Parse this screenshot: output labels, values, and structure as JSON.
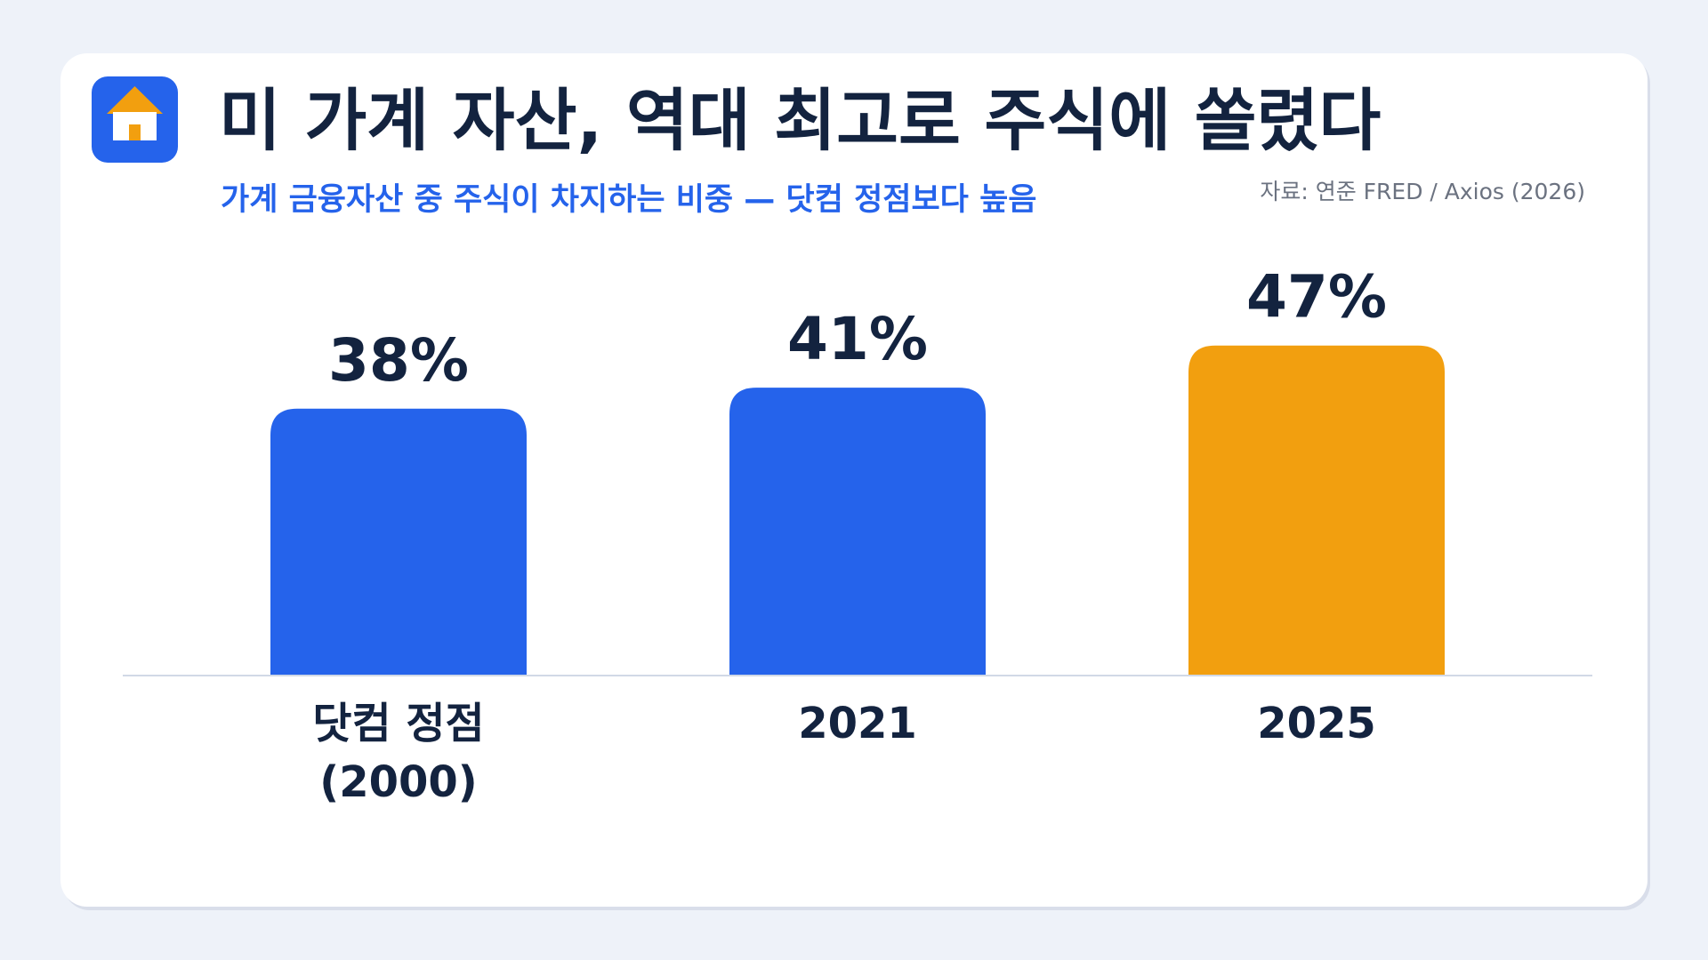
{
  "header": {
    "title": "미 가계 자산, 역대 최고로 주식에 쏠렸다",
    "subtitle": "가계 금융자산 중 주식이 차지하는 비중 — 닷컴 정점보다 높음",
    "source": "자료: 연준 FRED / Axios (2026)",
    "icon": "house-icon"
  },
  "colors": {
    "background": "#eef2f9",
    "title": "#13233f",
    "accent_blue": "#2563eb",
    "accent_orange": "#f29f0f",
    "axis": "#d1d9e6"
  },
  "chart_data": {
    "type": "bar",
    "title": "미 가계 자산, 역대 최고로 주식에 쏠렸다",
    "subtitle": "가계 금융자산 중 주식이 차지하는 비중 — 닷컴 정점보다 높음",
    "xlabel": "",
    "ylabel": "",
    "categories": [
      [
        "닷컴 정점",
        "(2000)"
      ],
      [
        "2021"
      ],
      [
        "2025"
      ]
    ],
    "values": [
      38,
      41,
      47
    ],
    "value_labels": [
      "38%",
      "41%",
      "47%"
    ],
    "bar_colors": [
      "#2563eb",
      "#2563eb",
      "#f29f0f"
    ],
    "ylim": [
      0,
      60
    ],
    "grid": false,
    "legend": "none"
  }
}
